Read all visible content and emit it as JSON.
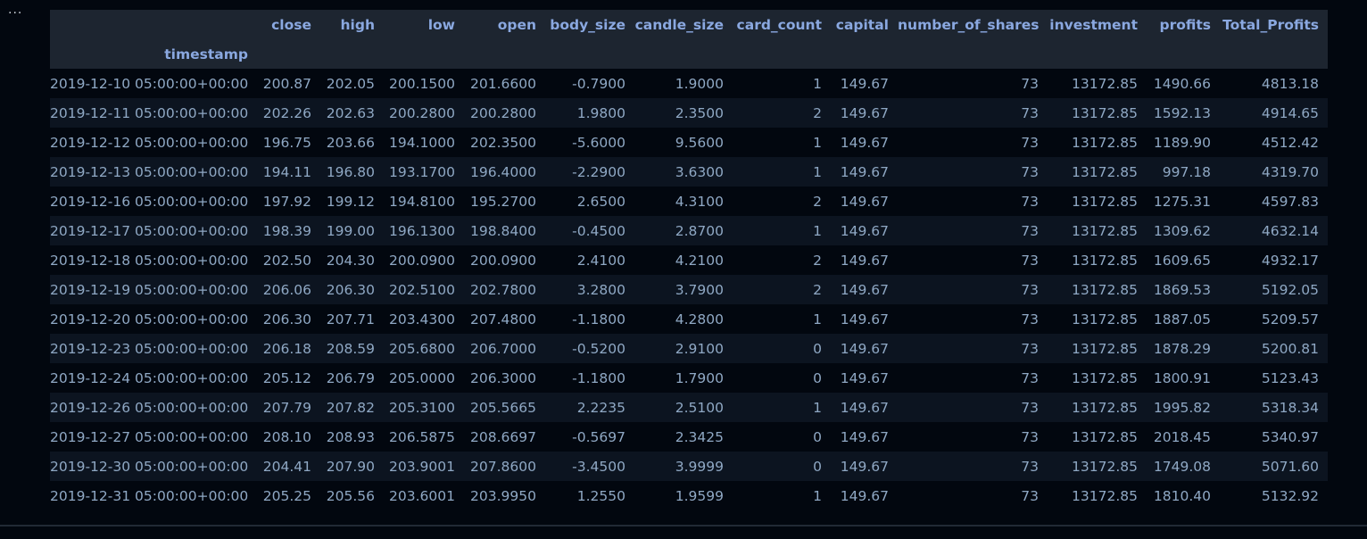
{
  "cell": {
    "menu_glyph": "···"
  },
  "table": {
    "index_name": "timestamp",
    "columns": [
      "close",
      "high",
      "low",
      "open",
      "body_size",
      "candle_size",
      "card_count",
      "capital",
      "number_of_shares",
      "investment",
      "profits",
      "Total_Profits"
    ],
    "rows": [
      {
        "index": "2019-12-10 05:00:00+00:00",
        "values": [
          "200.87",
          "202.05",
          "200.1500",
          "201.6600",
          "-0.7900",
          "1.9000",
          "1",
          "149.67",
          "73",
          "13172.85",
          "1490.66",
          "4813.18"
        ]
      },
      {
        "index": "2019-12-11 05:00:00+00:00",
        "values": [
          "202.26",
          "202.63",
          "200.2800",
          "200.2800",
          "1.9800",
          "2.3500",
          "2",
          "149.67",
          "73",
          "13172.85",
          "1592.13",
          "4914.65"
        ]
      },
      {
        "index": "2019-12-12 05:00:00+00:00",
        "values": [
          "196.75",
          "203.66",
          "194.1000",
          "202.3500",
          "-5.6000",
          "9.5600",
          "1",
          "149.67",
          "73",
          "13172.85",
          "1189.90",
          "4512.42"
        ]
      },
      {
        "index": "2019-12-13 05:00:00+00:00",
        "values": [
          "194.11",
          "196.80",
          "193.1700",
          "196.4000",
          "-2.2900",
          "3.6300",
          "1",
          "149.67",
          "73",
          "13172.85",
          "997.18",
          "4319.70"
        ]
      },
      {
        "index": "2019-12-16 05:00:00+00:00",
        "values": [
          "197.92",
          "199.12",
          "194.8100",
          "195.2700",
          "2.6500",
          "4.3100",
          "2",
          "149.67",
          "73",
          "13172.85",
          "1275.31",
          "4597.83"
        ]
      },
      {
        "index": "2019-12-17 05:00:00+00:00",
        "values": [
          "198.39",
          "199.00",
          "196.1300",
          "198.8400",
          "-0.4500",
          "2.8700",
          "1",
          "149.67",
          "73",
          "13172.85",
          "1309.62",
          "4632.14"
        ]
      },
      {
        "index": "2019-12-18 05:00:00+00:00",
        "values": [
          "202.50",
          "204.30",
          "200.0900",
          "200.0900",
          "2.4100",
          "4.2100",
          "2",
          "149.67",
          "73",
          "13172.85",
          "1609.65",
          "4932.17"
        ]
      },
      {
        "index": "2019-12-19 05:00:00+00:00",
        "values": [
          "206.06",
          "206.30",
          "202.5100",
          "202.7800",
          "3.2800",
          "3.7900",
          "2",
          "149.67",
          "73",
          "13172.85",
          "1869.53",
          "5192.05"
        ]
      },
      {
        "index": "2019-12-20 05:00:00+00:00",
        "values": [
          "206.30",
          "207.71",
          "203.4300",
          "207.4800",
          "-1.1800",
          "4.2800",
          "1",
          "149.67",
          "73",
          "13172.85",
          "1887.05",
          "5209.57"
        ]
      },
      {
        "index": "2019-12-23 05:00:00+00:00",
        "values": [
          "206.18",
          "208.59",
          "205.6800",
          "206.7000",
          "-0.5200",
          "2.9100",
          "0",
          "149.67",
          "73",
          "13172.85",
          "1878.29",
          "5200.81"
        ]
      },
      {
        "index": "2019-12-24 05:00:00+00:00",
        "values": [
          "205.12",
          "206.79",
          "205.0000",
          "206.3000",
          "-1.1800",
          "1.7900",
          "0",
          "149.67",
          "73",
          "13172.85",
          "1800.91",
          "5123.43"
        ]
      },
      {
        "index": "2019-12-26 05:00:00+00:00",
        "values": [
          "207.79",
          "207.82",
          "205.3100",
          "205.5665",
          "2.2235",
          "2.5100",
          "1",
          "149.67",
          "73",
          "13172.85",
          "1995.82",
          "5318.34"
        ]
      },
      {
        "index": "2019-12-27 05:00:00+00:00",
        "values": [
          "208.10",
          "208.93",
          "206.5875",
          "208.6697",
          "-0.5697",
          "2.3425",
          "0",
          "149.67",
          "73",
          "13172.85",
          "2018.45",
          "5340.97"
        ]
      },
      {
        "index": "2019-12-30 05:00:00+00:00",
        "values": [
          "204.41",
          "207.90",
          "203.9001",
          "207.8600",
          "-3.4500",
          "3.9999",
          "0",
          "149.67",
          "73",
          "13172.85",
          "1749.08",
          "5071.60"
        ]
      },
      {
        "index": "2019-12-31 05:00:00+00:00",
        "values": [
          "205.25",
          "205.56",
          "203.6001",
          "203.9950",
          "1.2550",
          "1.9599",
          "1",
          "149.67",
          "73",
          "13172.85",
          "1810.40",
          "5132.92"
        ]
      }
    ]
  },
  "colors": {
    "background": "#02070f",
    "header_background": "#1d2530",
    "stripe_row": "#0c1420",
    "header_text": "#8aa8e0",
    "cell_text": "#8fa8c4"
  }
}
